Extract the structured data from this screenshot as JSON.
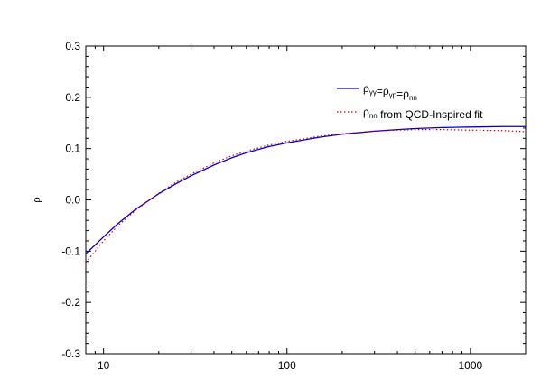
{
  "chart_data": {
    "type": "line",
    "title": "",
    "xlabel": "",
    "ylabel": "ρ",
    "xscale": "log",
    "xlim": [
      8,
      2000
    ],
    "ylim": [
      -0.3,
      0.3
    ],
    "xticks_major": [
      10,
      100,
      1000
    ],
    "xtick_labels": [
      "10",
      "100",
      "1000"
    ],
    "yticks": [
      -0.3,
      -0.2,
      -0.1,
      0.0,
      0.1,
      0.2,
      0.3
    ],
    "ytick_labels": [
      "-0.3",
      "-0.2",
      "-0.1",
      "0.0",
      "0.1",
      "0.2",
      "0.3"
    ],
    "grid": false,
    "legend_position": "top-right",
    "series": [
      {
        "name_parts": [
          {
            "t": "ρ",
            "sub": "γγ"
          },
          {
            "t": "=ρ",
            "sub": "γp"
          },
          {
            "t": "=ρ",
            "sub": "nn"
          }
        ],
        "color": "#0000cc",
        "style": "solid",
        "x": [
          8,
          9,
          10,
          12,
          15,
          20,
          25,
          30,
          40,
          50,
          60,
          80,
          100,
          150,
          200,
          300,
          400,
          500,
          700,
          1000,
          1500,
          2000
        ],
        "y": [
          -0.105,
          -0.088,
          -0.072,
          -0.046,
          -0.018,
          0.012,
          0.032,
          0.047,
          0.068,
          0.082,
          0.092,
          0.104,
          0.111,
          0.122,
          0.128,
          0.134,
          0.137,
          0.139,
          0.141,
          0.142,
          0.143,
          0.143
        ]
      },
      {
        "name_parts": [
          {
            "t": "ρ",
            "sub": "nn"
          },
          {
            "t": " from QCD-Inspired fit",
            "sub": ""
          }
        ],
        "color": "#cc0000",
        "style": "dotted",
        "x": [
          8,
          9,
          10,
          12,
          15,
          20,
          25,
          30,
          40,
          50,
          60,
          80,
          100,
          150,
          200,
          300,
          400,
          500,
          700,
          1000,
          1500,
          2000
        ],
        "y": [
          -0.122,
          -0.1,
          -0.08,
          -0.05,
          -0.02,
          0.013,
          0.035,
          0.05,
          0.072,
          0.086,
          0.095,
          0.107,
          0.114,
          0.124,
          0.129,
          0.134,
          0.136,
          0.137,
          0.137,
          0.136,
          0.135,
          0.133
        ]
      }
    ]
  }
}
